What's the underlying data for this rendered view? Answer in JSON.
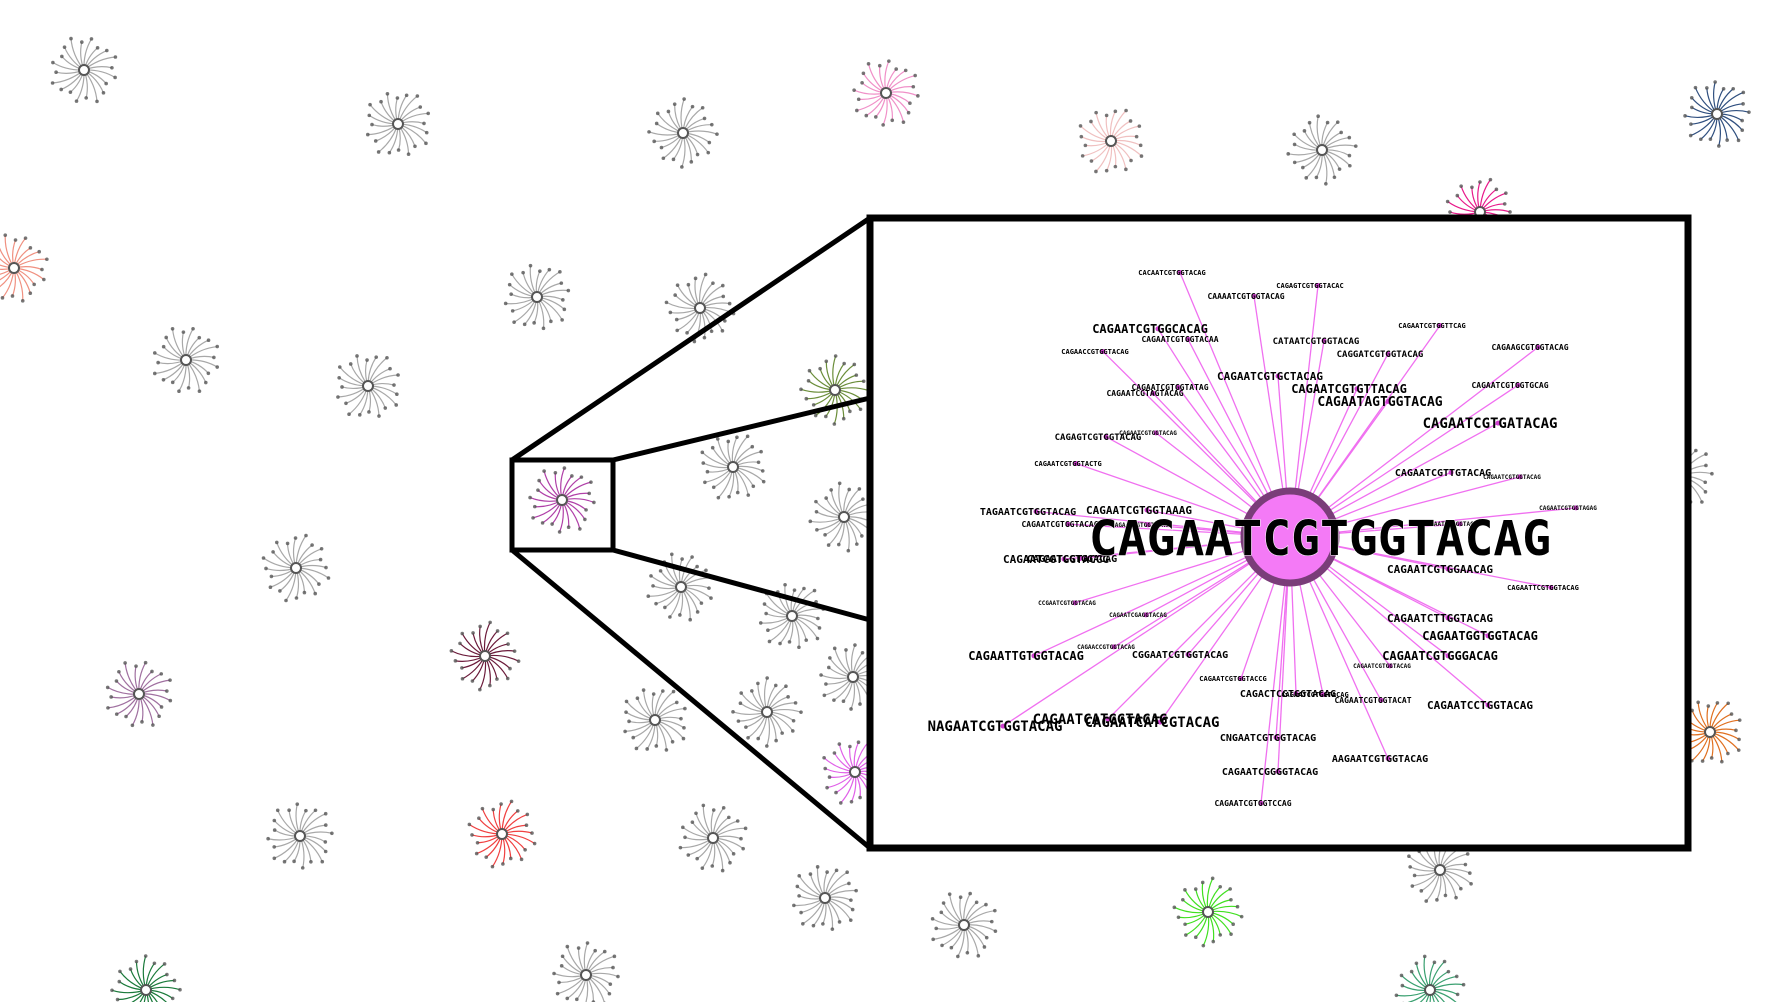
{
  "background_color": "#ffffff",
  "colors": {
    "frame": "#000000",
    "zoom_edge": "#f070f0",
    "zoom_hub_fill": "#f47af6",
    "zoom_hub_stroke": "#7a3d79",
    "zoom_leaf": "#d040d0",
    "label_text": "#000000"
  },
  "clusters": [
    {
      "color": "#a8a8a8"
    },
    {
      "color": "#a8a8a8"
    },
    {
      "color": "#a8a8a8"
    },
    {
      "color": "#f090c8"
    },
    {
      "color": "#f0c0c0"
    },
    {
      "color": "#a8a8a8"
    },
    {
      "color": "#2f4f7f"
    },
    {
      "color": "#e8188a"
    },
    {
      "color": "#f09080"
    },
    {
      "color": "#a8a8a8"
    },
    {
      "color": "#a8a8a8"
    },
    {
      "color": "#a8a8a8"
    },
    {
      "color": "#a8a8a8"
    },
    {
      "color": "#6b8e3a"
    },
    {
      "color": "#b040a8"
    },
    {
      "color": "#a8a8a8"
    },
    {
      "color": "#a8a8a8"
    },
    {
      "color": "#a8a8a8"
    },
    {
      "color": "#a8a8a8"
    },
    {
      "color": "#a8a8a8"
    },
    {
      "color": "#a8a8a8"
    },
    {
      "color": "#6b1a3a"
    },
    {
      "color": "#a070a0"
    },
    {
      "color": "#a8a8a8"
    },
    {
      "color": "#a8a8a8"
    },
    {
      "color": "#a8a8a8"
    },
    {
      "color": "#e060e8"
    },
    {
      "color": "#a8a8a8"
    },
    {
      "color": "#a8a8a8"
    },
    {
      "color": "#f04040"
    },
    {
      "color": "#a8a8a8"
    },
    {
      "color": "#a8a8a8"
    },
    {
      "color": "#40e020"
    },
    {
      "color": "#a8a8a8"
    },
    {
      "color": "#e07020"
    },
    {
      "color": "#1a7a3a"
    },
    {
      "color": "#a8a8a8"
    },
    {
      "color": "#a8a8a8"
    },
    {
      "color": "#3aa070"
    }
  ],
  "zoom": {
    "center_label": "CAGAATCGTGGTACAG",
    "sequences": [
      "CACAATCGTGGTACAG",
      "CAGAGTCGTGGTACAC",
      "CAAAATCGTGGTACAG",
      "CAGAATCGTGGCACAG",
      "CAGAATCGTGGTACAA",
      "CATAATCGTGGTACAG",
      "CAGGATCGTGGTACAG",
      "CAGAATCGTGGTTCAG",
      "CAGAAGCGTGGTACAG",
      "CAGAACCGTGGTACAG",
      "CAGAATCGTGCTACAG",
      "CAGAATCGTGGTATAG",
      "CAGAATCGTAGTACAG",
      "CAGAATCGTGTTACAG",
      "CAGAATCGTGGTGCAG",
      "CAGAATAGTGGTACAG",
      "CAGAATCGTGATACAG",
      "CAGAGTCGTGGTACAG",
      "CAGAATCGTGGTACAG",
      "CAGAATCGTGGTACTG",
      "CAGAATCGTTGTACAG",
      "CAGAATCGTGGTACAG",
      "CAGAATCGTGGTAGAG",
      "TAGAATCGTGGTACAG",
      "CAGAATCGTGGTAAAG",
      "CAGAATCGTGGTACAG",
      "CAGAATCGTGGTACAG",
      "CAGAATCGTGGTACAG",
      "CAGAATCGTGGACAG",
      "CAGAATCGTGGTACGG",
      "CAGAATCGTGGAACAG",
      "CAGAATTCGTGGTACAG",
      "CCGAATCGTGGTACAG",
      "CAGAATCGAGGTACAG",
      "CAGAATCTTGGTACAG",
      "CAGAACCGTGGTACAG",
      "CAGAATGGTGGTACAG",
      "CAGAATTGTGGTACAG",
      "CGGAATCGTGGTACAG",
      "CAGAATCGTGGGACAG",
      "CAGAATCGTGGTACCG",
      "CAGAATCGTGGTACAG",
      "CAGACTCGTGGTACAG",
      "CAGAATCGTGGTACAG",
      "CAGAATCGTGGTACAT",
      "CAGAATCCTGGTACAG",
      "NAGAATCGTGGTACAG",
      "CAGAATCATCGTACAG",
      "CAGAATCATGGTACAG",
      "CNGAATCGTGGTACAG",
      "AAGAATCGTGGTACAG",
      "CAGAATCGGGGTACAG",
      "CAGAATCGTGGTCCAG"
    ]
  }
}
